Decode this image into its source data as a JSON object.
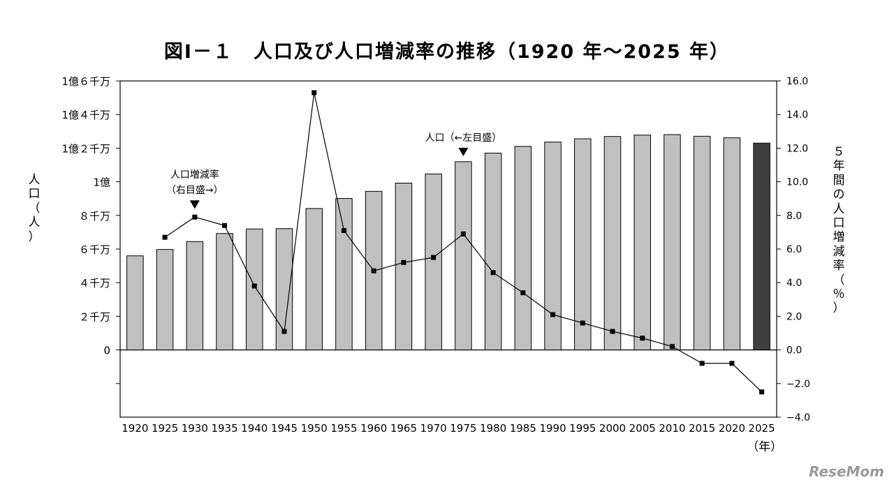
{
  "chart_data": {
    "type": "bar",
    "title": "図Ⅰ－１　人口及び人口増減率の推移（1920 年～2025 年）",
    "ylabel_left": "人口（人）",
    "ylabel_right": "５年間の人口増減率（％）",
    "xunit": "（年）",
    "categories": [
      "1920",
      "1925",
      "1930",
      "1935",
      "1940",
      "1945",
      "1950",
      "1955",
      "1960",
      "1965",
      "1970",
      "1975",
      "1980",
      "1985",
      "1990",
      "1995",
      "2000",
      "2005",
      "2010",
      "2015",
      "2020",
      "2025"
    ],
    "left_yticks": [
      "1億６千万",
      "1億４千万",
      "1億２千万",
      "1億",
      "８千万",
      "６千万",
      "４千万",
      "２千万",
      "0"
    ],
    "right_yticks": [
      "16.0",
      "14.0",
      "12.0",
      "10.0",
      "8.0",
      "6.0",
      "4.0",
      "2.0",
      "0.0",
      "−2.0",
      "−4.0"
    ],
    "left_ylim": [
      -40000000,
      160000000
    ],
    "right_ylim": [
      -4.0,
      16.0
    ],
    "series": [
      {
        "name": "人口",
        "axis": "left",
        "type": "bar",
        "values": [
          55960000,
          59740000,
          64450000,
          69250000,
          71930000,
          72150000,
          84110000,
          90080000,
          94300000,
          99210000,
          104670000,
          111940000,
          117060000,
          121050000,
          123610000,
          125570000,
          126930000,
          127770000,
          128060000,
          127090000,
          126150000,
          123000000
        ],
        "colors": [
          "#c0c0c0",
          "#c0c0c0",
          "#c0c0c0",
          "#c0c0c0",
          "#c0c0c0",
          "#c0c0c0",
          "#c0c0c0",
          "#c0c0c0",
          "#c0c0c0",
          "#c0c0c0",
          "#c0c0c0",
          "#c0c0c0",
          "#c0c0c0",
          "#c0c0c0",
          "#c0c0c0",
          "#c0c0c0",
          "#c0c0c0",
          "#c0c0c0",
          "#c0c0c0",
          "#c0c0c0",
          "#c0c0c0",
          "#404040"
        ]
      },
      {
        "name": "人口増減率",
        "axis": "right",
        "type": "line",
        "values": [
          null,
          6.7,
          7.9,
          7.4,
          3.8,
          1.1,
          15.3,
          7.1,
          4.7,
          5.2,
          5.5,
          6.9,
          4.6,
          3.4,
          2.1,
          1.6,
          1.1,
          0.7,
          0.2,
          -0.8,
          -0.8,
          -2.5
        ]
      }
    ],
    "annotations": [
      {
        "text_lines": [
          "人口増減率",
          "（右目盛→）"
        ],
        "category": "1930"
      },
      {
        "text_lines": [
          "人口（←左目盛）"
        ],
        "category": "1975"
      }
    ],
    "watermark": "ReseMom"
  }
}
